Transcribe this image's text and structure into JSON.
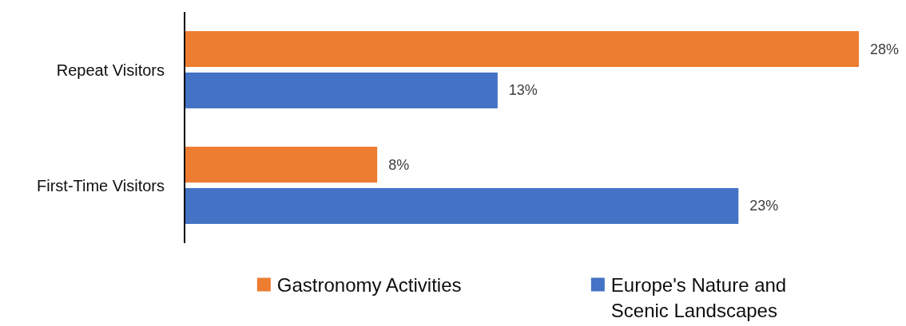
{
  "chart_data": {
    "type": "bar",
    "orientation": "horizontal",
    "categories": [
      "Repeat Visitors",
      "First-Time Visitors"
    ],
    "series": [
      {
        "name": "Gastronomy Activities",
        "color": "#ed7d31",
        "values": [
          28,
          8
        ],
        "value_labels": [
          "28%",
          "8%"
        ]
      },
      {
        "name": "Europe's Nature and Scenic Landscapes",
        "color": "#4472c4",
        "values": [
          13,
          23
        ],
        "value_labels": [
          "13%",
          "23%"
        ]
      }
    ],
    "legend": "bottom"
  }
}
